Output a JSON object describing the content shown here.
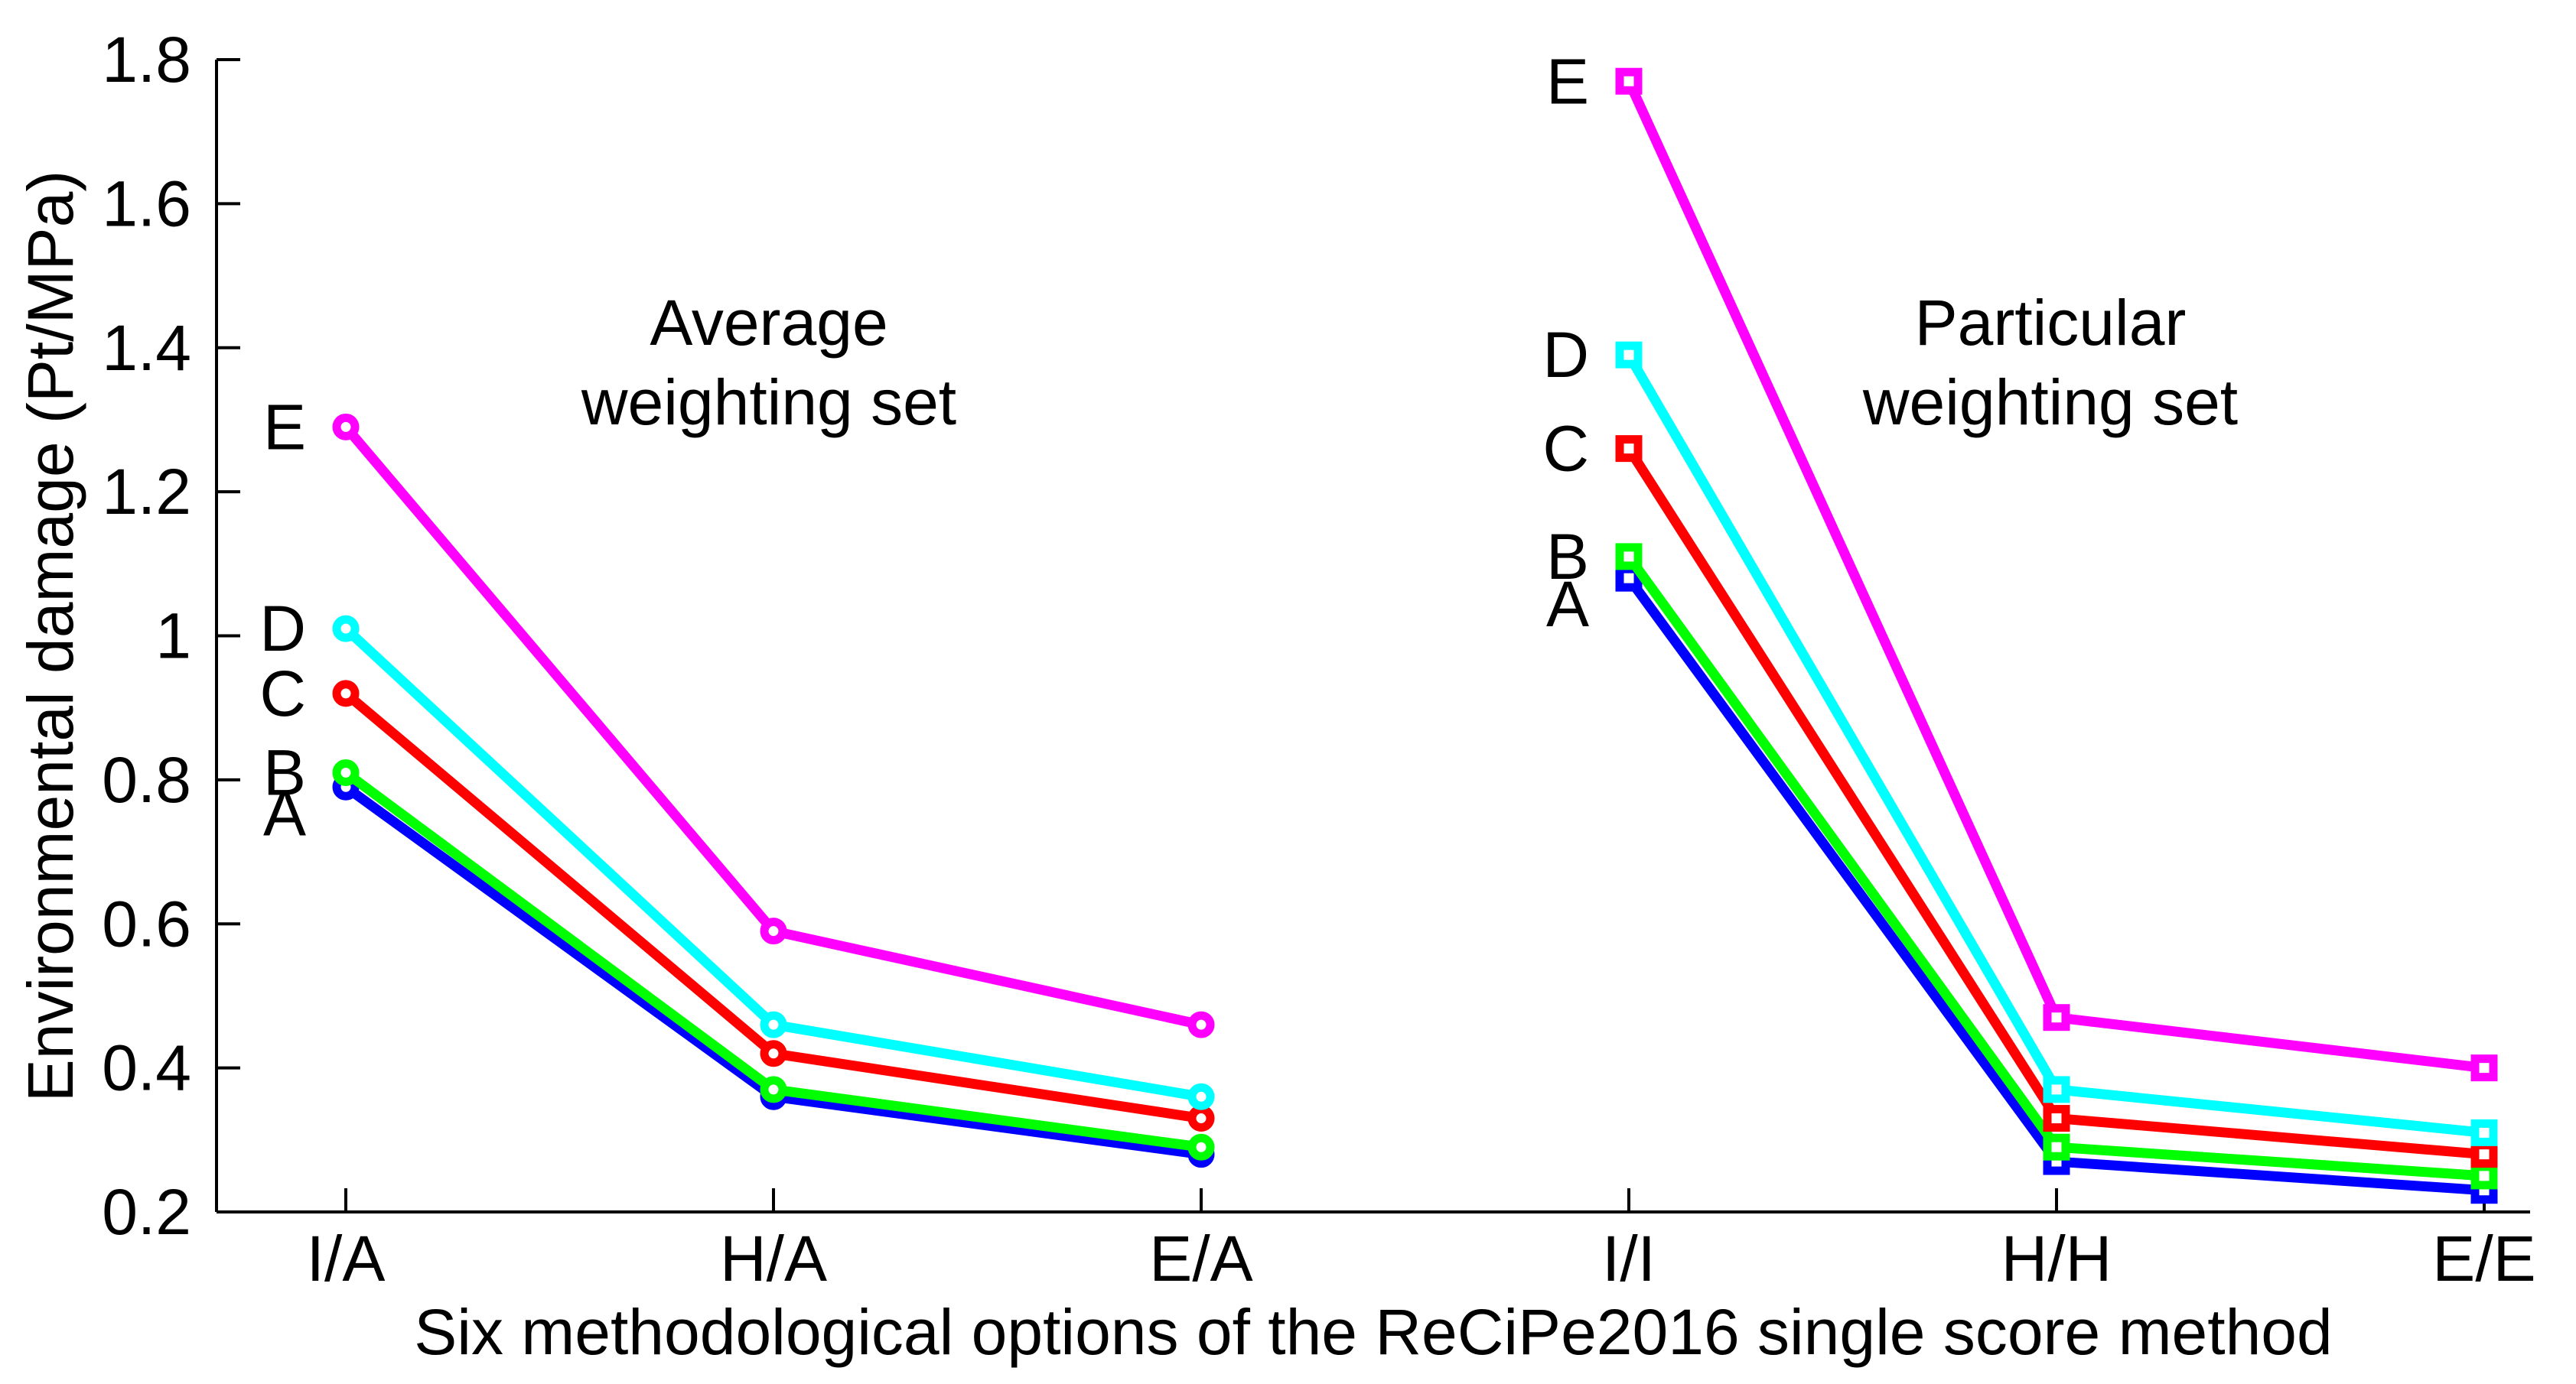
{
  "chart_data": {
    "type": "line",
    "title": "",
    "xlabel": "Six methodological options of the ReCiPe2016 single score method",
    "ylabel": "Environmental damage (Pt/MPa)",
    "ylim": [
      0.2,
      1.8
    ],
    "ytick_values": [
      0.2,
      0.4,
      0.6,
      0.8,
      1.0,
      1.2,
      1.4,
      1.6,
      1.8
    ],
    "ytick_labels": [
      "0.2",
      "0.4",
      "0.6",
      "0.8",
      "1",
      "1.2",
      "1.4",
      "1.6",
      "1.8"
    ],
    "x_categories_all": [
      "I/A",
      "H/A",
      "E/A",
      "I/I",
      "H/H",
      "E/E"
    ],
    "grid": false,
    "box": false,
    "axis_color": "#000000",
    "background": "#ffffff",
    "legend_position": "inline letter labels at first point of each series",
    "groups": [
      {
        "title_line1": "Average",
        "title_line2": "weighting set",
        "marker": "circle",
        "categories": [
          "I/A",
          "H/A",
          "E/A"
        ],
        "series": [
          {
            "name": "A",
            "color": "#0000ff",
            "values": [
              0.79,
              0.36,
              0.28
            ]
          },
          {
            "name": "B",
            "color": "#00ff00",
            "values": [
              0.81,
              0.37,
              0.29
            ]
          },
          {
            "name": "C",
            "color": "#ff0000",
            "values": [
              0.92,
              0.42,
              0.33
            ]
          },
          {
            "name": "D",
            "color": "#00ffff",
            "values": [
              1.01,
              0.46,
              0.36
            ]
          },
          {
            "name": "E",
            "color": "#ff00ff",
            "values": [
              1.29,
              0.59,
              0.46
            ]
          }
        ]
      },
      {
        "title_line1": "Particular",
        "title_line2": "weighting set",
        "marker": "square",
        "categories": [
          "I/I",
          "H/H",
          "E/E"
        ],
        "series": [
          {
            "name": "A",
            "color": "#0000ff",
            "values": [
              1.08,
              0.27,
              0.23
            ]
          },
          {
            "name": "B",
            "color": "#00ff00",
            "values": [
              1.11,
              0.29,
              0.25
            ]
          },
          {
            "name": "C",
            "color": "#ff0000",
            "values": [
              1.26,
              0.33,
              0.28
            ]
          },
          {
            "name": "D",
            "color": "#00ffff",
            "values": [
              1.39,
              0.37,
              0.31
            ]
          },
          {
            "name": "E",
            "color": "#ff00ff",
            "values": [
              1.77,
              0.47,
              0.4
            ]
          }
        ]
      }
    ]
  }
}
